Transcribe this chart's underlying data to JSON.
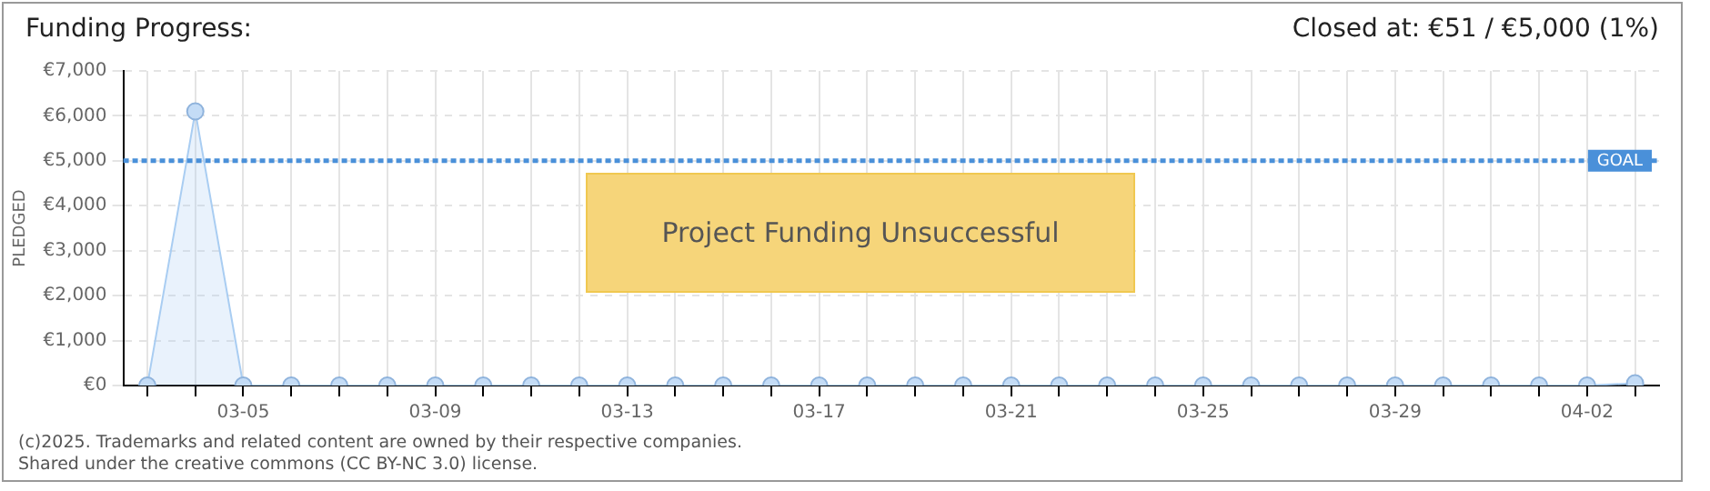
{
  "chart_data": {
    "type": "area",
    "title": "Funding Progress:",
    "subtitle": "Closed at:  €51 /  €5,000 (1%)",
    "ylabel": "PLEDGED",
    "categories": [
      null,
      null,
      "03-05",
      null,
      null,
      null,
      "03-09",
      null,
      null,
      null,
      "03-13",
      null,
      null,
      null,
      "03-17",
      null,
      null,
      null,
      "03-21",
      null,
      null,
      null,
      "03-25",
      null,
      null,
      null,
      "03-29",
      null,
      null,
      null,
      "04-02",
      null
    ],
    "series": [
      {
        "color": "#a9cdf2",
        "values": [
          0,
          6100,
          0,
          0,
          0,
          0,
          0,
          0,
          0,
          0,
          0,
          0,
          0,
          0,
          0,
          0,
          0,
          0,
          0,
          0,
          0,
          0,
          0,
          0,
          0,
          0,
          0,
          0,
          0,
          0,
          0,
          51
        ]
      }
    ],
    "ylim": [
      0,
      7000
    ],
    "yticks": [
      {
        "value": 0,
        "label": "€0"
      },
      {
        "value": 1000,
        "label": "€1,000"
      },
      {
        "value": 2000,
        "label": "€2,000"
      },
      {
        "value": 3000,
        "label": "€3,000"
      },
      {
        "value": 4000,
        "label": "€4,000"
      },
      {
        "value": 5000,
        "label": "€5,000"
      },
      {
        "value": 6000,
        "label": "€6,000"
      },
      {
        "value": 7000,
        "label": "€7,000"
      }
    ],
    "ref_lines": [
      {
        "axis": "y",
        "value": 5000,
        "label": "GOAL",
        "color": "#4a90d9",
        "line_style": "dotted"
      }
    ],
    "annotations": [
      "Project Funding Unsuccessful",
      "(c)2025. Trademarks and related content are owned by their respective companies.",
      "Shared under the creative commons (CC BY-NC 3.0) license."
    ],
    "grid": true,
    "legend": false,
    "marker": "circle",
    "line_style": "solid"
  }
}
